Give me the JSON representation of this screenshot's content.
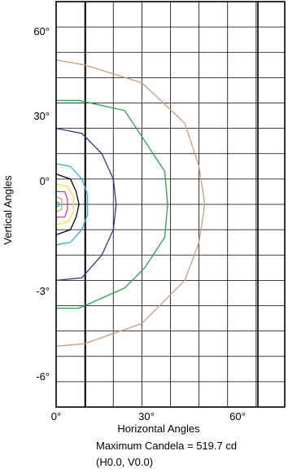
{
  "chart_data": {
    "type": "line",
    "title": "",
    "xlabel": "Horizontal Angles",
    "ylabel": "Vertical Angles",
    "x_tick_labels": [
      "0°",
      "30°",
      "60°"
    ],
    "y_tick_labels": [
      "60°",
      "30°",
      "0°",
      "-3°",
      "-6°"
    ],
    "xlim": [
      0,
      80
    ],
    "ylim": [
      -80,
      80
    ],
    "grid": true,
    "series": [
      {
        "color": "#c8a078",
        "points": [
          [
            0,
            57
          ],
          [
            10,
            55
          ],
          [
            30,
            48
          ],
          [
            45,
            32
          ],
          [
            50,
            15
          ],
          [
            52,
            0
          ],
          [
            50,
            -15
          ],
          [
            45,
            -30
          ],
          [
            30,
            -47
          ],
          [
            10,
            -55
          ],
          [
            0,
            -56
          ]
        ]
      },
      {
        "color": "#22a54a",
        "points": [
          [
            0,
            41
          ],
          [
            8,
            41
          ],
          [
            24,
            37
          ],
          [
            31,
            25
          ],
          [
            38,
            13
          ],
          [
            39,
            0
          ],
          [
            38,
            -13
          ],
          [
            31,
            -25
          ],
          [
            24,
            -33
          ],
          [
            8,
            -41
          ],
          [
            0,
            -41
          ]
        ]
      },
      {
        "color": "#2b3591",
        "points": [
          [
            0,
            30
          ],
          [
            9,
            28
          ],
          [
            16,
            20
          ],
          [
            20,
            10
          ],
          [
            21,
            0
          ],
          [
            20,
            -10
          ],
          [
            16,
            -20
          ],
          [
            9,
            -29
          ],
          [
            0,
            -30
          ]
        ]
      },
      {
        "color": "#25b9e6",
        "points": [
          [
            0,
            16
          ],
          [
            5,
            15
          ],
          [
            9,
            10
          ],
          [
            11,
            4
          ],
          [
            11,
            -4
          ],
          [
            9,
            -10
          ],
          [
            5,
            -15
          ],
          [
            0,
            -16
          ]
        ]
      },
      {
        "color": "#000000",
        "points": [
          [
            0,
            12
          ],
          [
            5,
            10
          ],
          [
            7,
            5
          ],
          [
            8,
            0
          ],
          [
            7,
            -5
          ],
          [
            5,
            -10
          ],
          [
            0,
            -12
          ]
        ]
      },
      {
        "color": "#f4e21c",
        "points": [
          [
            0,
            8
          ],
          [
            4,
            7
          ],
          [
            6,
            3
          ],
          [
            6,
            -3
          ],
          [
            4,
            -7
          ],
          [
            0,
            -8
          ]
        ]
      },
      {
        "color": "#e6348c",
        "points": [
          [
            0,
            5
          ],
          [
            3,
            5
          ],
          [
            4,
            2
          ],
          [
            4,
            -2
          ],
          [
            3,
            -5
          ],
          [
            0,
            -5
          ]
        ]
      },
      {
        "color": "#c8a078",
        "points": [
          [
            0,
            3
          ],
          [
            2,
            2
          ],
          [
            2,
            -2
          ],
          [
            0,
            -3
          ]
        ]
      },
      {
        "color": "#25b9e6",
        "points": [
          [
            0,
            1.2
          ],
          [
            1,
            0.6
          ],
          [
            1,
            -0.6
          ],
          [
            0,
            -1.2
          ]
        ]
      }
    ]
  },
  "caption": {
    "line1": "Maximum Candela = 519.7 cd",
    "line2": "(H0.0, V0.0)"
  }
}
